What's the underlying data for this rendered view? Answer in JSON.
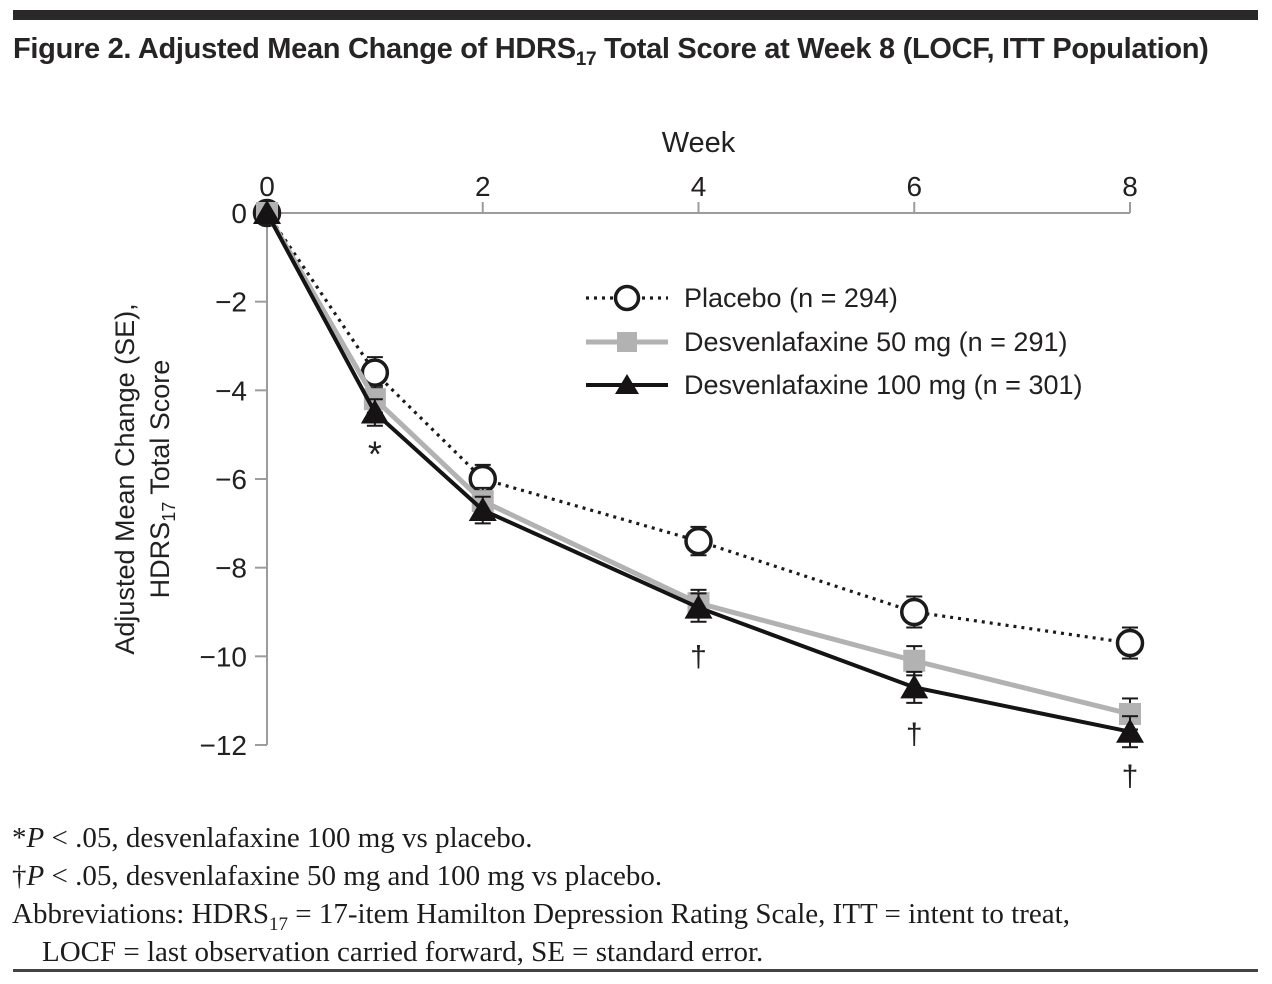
{
  "title": {
    "pre": "Figure 2. Adjusted Mean Change of HDRS",
    "sub": "17",
    "post": " Total Score at Week 8 (LOCF, ITT Population)"
  },
  "chart_data": {
    "type": "line",
    "xlabel": "Week",
    "x_ticks": [
      0,
      2,
      4,
      6,
      8
    ],
    "x_range": [
      0,
      8
    ],
    "ylim": [
      -12,
      0
    ],
    "y_ticks": [
      0,
      -2,
      -4,
      -6,
      -8,
      -10,
      -12
    ],
    "ylabel": {
      "line1": "Adjusted Mean Change (SE),",
      "line2_pre": "HDRS",
      "line2_sub": "17",
      "line2_post": " Total Score"
    },
    "grid": false,
    "legend_position": "inside-upper-right",
    "x": [
      0,
      1,
      2,
      4,
      6,
      8
    ],
    "series": [
      {
        "name": "Placebo (n = 294)",
        "marker": "open-circle",
        "line_style": "dotted",
        "color": "#1d1a1b",
        "values": [
          0,
          -3.6,
          -6.0,
          -7.4,
          -9.0,
          -9.7
        ],
        "se": [
          0,
          0.35,
          0.32,
          0.32,
          0.35,
          0.35
        ]
      },
      {
        "name": "Desvenlafaxine 50 mg (n = 291)",
        "marker": "filled-square",
        "line_style": "solid",
        "color": "#b2b2b2",
        "values": [
          0,
          -4.2,
          -6.5,
          -8.8,
          -10.1,
          -11.3
        ],
        "se": [
          0,
          0.3,
          0.3,
          0.3,
          0.33,
          0.35
        ]
      },
      {
        "name": "Desvenlafaxine 100 mg (n = 301)",
        "marker": "filled-triangle",
        "line_style": "solid",
        "color": "#161314",
        "values": [
          0,
          -4.5,
          -6.7,
          -8.9,
          -10.7,
          -11.7
        ],
        "se": [
          0,
          0.3,
          0.3,
          0.32,
          0.35,
          0.35
        ]
      }
    ],
    "annotations": [
      {
        "x": 1,
        "value": -5.4,
        "text": "*"
      },
      {
        "x": 4,
        "value": -10.0,
        "text": "†"
      },
      {
        "x": 6,
        "value": -11.75,
        "text": "†"
      },
      {
        "x": 8,
        "value": -12.7,
        "text": "†"
      }
    ]
  },
  "footnotes": [
    {
      "indent": false,
      "segments": [
        {
          "text": "*"
        },
        {
          "text": "P",
          "italic": true
        },
        {
          "text": " < .05, desvenlafaxine 100 mg vs placebo."
        }
      ]
    },
    {
      "indent": false,
      "segments": [
        {
          "text": "†"
        },
        {
          "text": "P",
          "italic": true
        },
        {
          "text": " < .05, desvenlafaxine 50 mg and 100 mg vs placebo."
        }
      ]
    },
    {
      "indent": false,
      "segments": [
        {
          "text": "Abbreviations: HDRS"
        },
        {
          "text": "17",
          "sub": true
        },
        {
          "text": " = 17-item Hamilton Depression Rating Scale, ITT = intent to treat,"
        }
      ]
    },
    {
      "indent": true,
      "segments": [
        {
          "text": "LOCF = last observation carried forward, SE = standard error."
        }
      ]
    }
  ],
  "colors": {
    "top_bar": "#2b282a",
    "bottom_rule": "#454345",
    "axis": "#9c9c9c",
    "text": "#232021",
    "error_bar": "#1a1a1a",
    "gray_series": "#b2b2b2"
  }
}
